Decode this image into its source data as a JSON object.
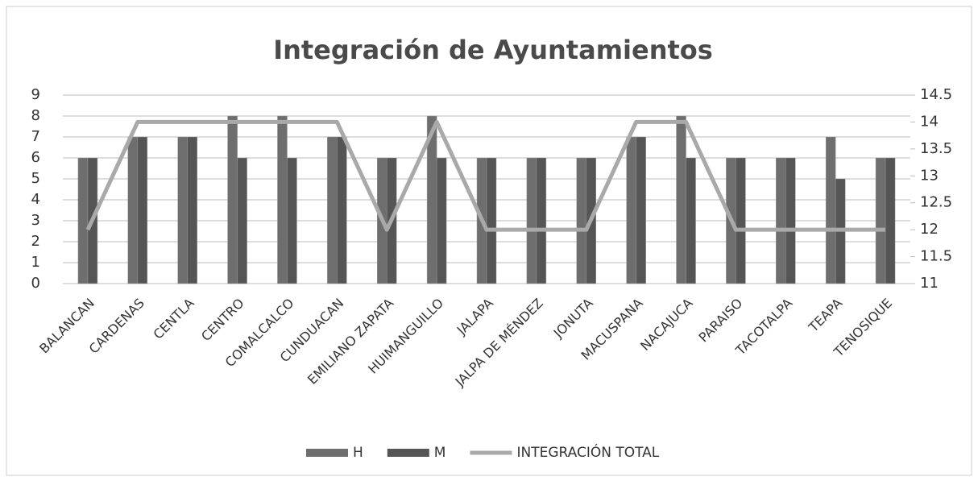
{
  "chart_data": {
    "type": "bar_line",
    "title": "Integración de Ayuntamientos",
    "categories": [
      "BALANCAN",
      "CARDENAS",
      "CENTLA",
      "CENTRO",
      "COMALCALCO",
      "CUNDUACAN",
      "EMILIANO ZAPATA",
      "HUIMANGUILLO",
      "JALAPA",
      "JALPA DE MÉNDEZ",
      "JONUTA",
      "MACUSPANA",
      "NACAJUCA",
      "PARAISO",
      "TACOTALPA",
      "TEAPA",
      "TENOSIQUE"
    ],
    "series": [
      {
        "name": "H",
        "type": "bar",
        "color": "#6e6e6e",
        "values": [
          6,
          7,
          7,
          8,
          8,
          7,
          6,
          8,
          6,
          6,
          6,
          7,
          8,
          6,
          6,
          7,
          6
        ]
      },
      {
        "name": "M",
        "type": "bar",
        "color": "#555555",
        "values": [
          6,
          7,
          7,
          6,
          6,
          7,
          6,
          6,
          6,
          6,
          6,
          7,
          6,
          6,
          6,
          5,
          6
        ]
      },
      {
        "name": "INTEGRACIÓN TOTAL",
        "type": "line",
        "axis": "y2",
        "color": "#a9a9a9",
        "values": [
          12,
          14,
          14,
          14,
          14,
          14,
          12,
          14,
          12,
          12,
          12,
          14,
          14,
          12,
          12,
          12,
          12
        ]
      }
    ],
    "ylim": [
      0,
      9
    ],
    "yticks": [
      0,
      1,
      2,
      3,
      4,
      5,
      6,
      7,
      8,
      9
    ],
    "y2lim": [
      11,
      14.5
    ],
    "y2ticks": [
      11,
      11.5,
      12,
      12.5,
      13,
      13.5,
      14,
      14.5
    ],
    "grid": true,
    "legend": "bottom"
  }
}
